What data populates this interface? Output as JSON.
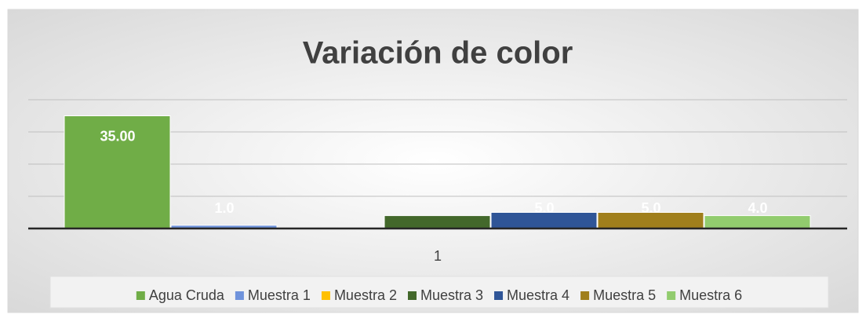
{
  "chart_data": {
    "type": "bar",
    "title": "Variación de color",
    "categories": [
      "1"
    ],
    "series": [
      {
        "name": "Agua Cruda",
        "color": "#70ad47",
        "values": [
          35
        ],
        "value_labels": [
          "35.00"
        ]
      },
      {
        "name": "Muestra 1",
        "color": "#6f93dc",
        "values": [
          1
        ],
        "value_labels": [
          "1.0"
        ]
      },
      {
        "name": "Muestra 2",
        "color": "#ffc000",
        "values": [
          0
        ],
        "value_labels": [
          null
        ]
      },
      {
        "name": "Muestra 3",
        "color": "#43682b",
        "values": [
          4
        ],
        "value_labels": [
          null
        ]
      },
      {
        "name": "Muestra 4",
        "color": "#2f5597",
        "values": [
          5
        ],
        "value_labels": [
          "5.0"
        ]
      },
      {
        "name": "Muestra 5",
        "color": "#a07f1c",
        "values": [
          5
        ],
        "value_labels": [
          "5.0"
        ]
      },
      {
        "name": "Muestra 6",
        "color": "#92cc6e",
        "values": [
          4
        ],
        "value_labels": [
          "4.0"
        ]
      }
    ],
    "ylim": [
      0,
      40
    ],
    "yticks": [
      0,
      10,
      20,
      30,
      40
    ],
    "grid": true,
    "legend": "bottom"
  }
}
